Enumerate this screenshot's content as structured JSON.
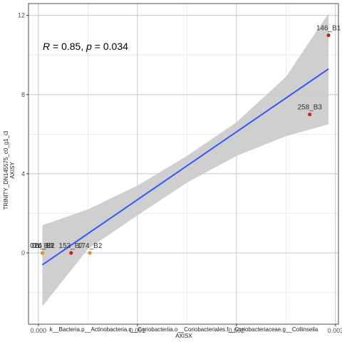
{
  "chart_data": {
    "type": "scatter",
    "xlabel": "k__Bacteria.p__Actinobacteria.c__Coriobacteriia.o__Coriobacteriales.f__Coriobacteriaceae.g__Collinsella",
    "xlabel2": "AXISX",
    "ylabel": "TRINITY_DN145575_c0_g1_i3",
    "ylabel2": "AXISY",
    "xlim": [
      -0.0001,
      0.00303
    ],
    "ylim": [
      -3.6,
      12.6
    ],
    "x_ticks": [
      0.0,
      0.001,
      0.002,
      0.003
    ],
    "x_tick_labels": [
      "0.000",
      "0.001",
      "0.002",
      "0.003"
    ],
    "y_ticks": [
      0,
      4,
      8,
      12
    ],
    "y_tick_labels": [
      "0",
      "4",
      "8",
      "12"
    ],
    "grid": true,
    "annotation": {
      "R_label": "R",
      "R_value": " = 0.85, ",
      "p_label": "p",
      "p_value": " = 0.034"
    },
    "points": [
      {
        "label": "146_B1",
        "x": 0.00293,
        "y": 11.0,
        "color": "#cc2222"
      },
      {
        "label": "258_B3",
        "x": 0.00274,
        "y": 7.0,
        "color": "#cc2222"
      },
      {
        "label": "153_B7",
        "x": 0.00033,
        "y": 0.0,
        "color": "#cc2222"
      },
      {
        "label": "174_B2",
        "x": 0.00052,
        "y": 0.0,
        "color": "#e69138"
      },
      {
        "label": "024_B2",
        "x": 4e-05,
        "y": 0.0,
        "color": "#e69138"
      },
      {
        "label": "016_B1",
        "x": 4e-05,
        "y": 0.0,
        "color": "#e69138"
      },
      {
        "label": "01_B5",
        "x": 4e-05,
        "y": 0.0,
        "color": "#e69138"
      }
    ],
    "fit_line": {
      "x": [
        4e-05,
        0.00293
      ],
      "y": [
        -0.6,
        9.3
      ],
      "color": "#3355ff"
    },
    "confidence_band": {
      "x": [
        4e-05,
        0.0005,
        0.001,
        0.0015,
        0.002,
        0.0025,
        0.00293
      ],
      "lower": [
        -2.7,
        0.2,
        1.9,
        3.55,
        4.9,
        5.9,
        6.5
      ],
      "upper": [
        1.4,
        2.2,
        3.4,
        4.9,
        6.6,
        8.9,
        12.1
      ]
    }
  }
}
